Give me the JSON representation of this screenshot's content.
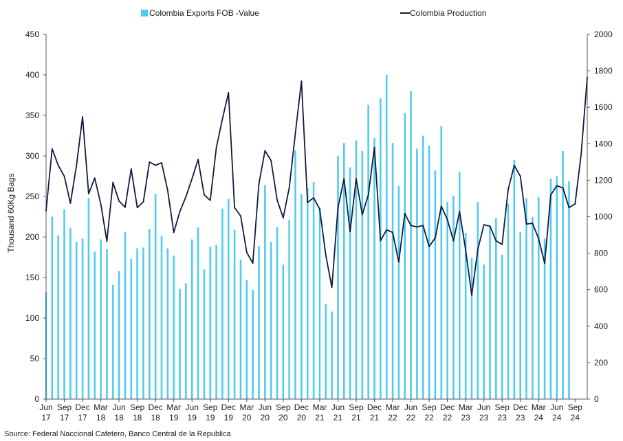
{
  "source_note": "Source: Federal Naccional Cafetero, Banco Central de la Republica",
  "chart_data": {
    "type": "bar",
    "ylabel": "Thousand 60Kg Bags",
    "ylim": [
      0,
      450
    ],
    "y2lim": [
      0,
      2000
    ],
    "y_ticks": [
      "0",
      "50",
      "100",
      "150",
      "200",
      "250",
      "300",
      "350",
      "400",
      "450"
    ],
    "y2_ticks": [
      "0",
      "200",
      "400",
      "600",
      "800",
      "1000",
      "1200",
      "1400",
      "1600",
      "1800",
      "2000"
    ],
    "grid": false,
    "legend_position": "top",
    "colors": {
      "bars": "#4FCCF0",
      "line": "#0E1A3E"
    },
    "x_start": "2017-06",
    "x_tick_labels": [
      [
        "Jun",
        "17"
      ],
      [
        "Sep",
        "17"
      ],
      [
        "Dec",
        "17"
      ],
      [
        "Mar",
        "18"
      ],
      [
        "Jun",
        "18"
      ],
      [
        "Sep",
        "18"
      ],
      [
        "Dec",
        "18"
      ],
      [
        "Mar",
        "19"
      ],
      [
        "Jun",
        "19"
      ],
      [
        "Sep",
        "19"
      ],
      [
        "Dec",
        "19"
      ],
      [
        "Mar",
        "20"
      ],
      [
        "Jun",
        "20"
      ],
      [
        "Sep",
        "20"
      ],
      [
        "Dec",
        "20"
      ],
      [
        "Mar",
        "21"
      ],
      [
        "Jun",
        "21"
      ],
      [
        "Sep",
        "21"
      ],
      [
        "Dec",
        "21"
      ],
      [
        "Mar",
        "22"
      ],
      [
        "Jun",
        "22"
      ],
      [
        "Sep",
        "22"
      ],
      [
        "Dec",
        "22"
      ],
      [
        "Mar",
        "23"
      ],
      [
        "Jun",
        "23"
      ],
      [
        "Sep",
        "23"
      ],
      [
        "Dec",
        "23"
      ],
      [
        "Mar",
        "24"
      ],
      [
        "Jun",
        "24"
      ],
      [
        "Sep",
        "24"
      ]
    ],
    "series": [
      {
        "name": "Colombia Exports FOB -Value",
        "kind": "bar",
        "axis": "left",
        "values": [
          132,
          225,
          202,
          234,
          211,
          194,
          198,
          248,
          182,
          197,
          185,
          141,
          158,
          206,
          173,
          186,
          187,
          210,
          253,
          201,
          186,
          177,
          136,
          143,
          197,
          212,
          160,
          188,
          190,
          235,
          247,
          209,
          172,
          147,
          135,
          189,
          264,
          194,
          212,
          166,
          221,
          307,
          253,
          261,
          268,
          236,
          117,
          108,
          300,
          316,
          286,
          319,
          306,
          363,
          322,
          371,
          400,
          316,
          263,
          353,
          380,
          309,
          325,
          313,
          282,
          337,
          243,
          251,
          280,
          205,
          174,
          243,
          166,
          214,
          223,
          178,
          241,
          295,
          206,
          248,
          225,
          249,
          198,
          272,
          275,
          306,
          269
        ]
      },
      {
        "name": "Colombia Production",
        "kind": "line",
        "axis": "right",
        "values": [
          1032,
          1372,
          1282,
          1222,
          1074,
          1280,
          1548,
          1126,
          1212,
          1070,
          866,
          1188,
          1086,
          1052,
          1262,
          1050,
          1082,
          1300,
          1282,
          1296,
          1144,
          914,
          1028,
          1110,
          1208,
          1314,
          1120,
          1090,
          1378,
          1536,
          1680,
          1050,
          1004,
          805,
          745,
          1180,
          1362,
          1308,
          1092,
          994,
          1160,
          1458,
          1744,
          1078,
          1104,
          1042,
          790,
          612,
          1048,
          1208,
          918,
          1208,
          1012,
          1120,
          1380,
          868,
          928,
          914,
          752,
          1018,
          952,
          944,
          952,
          836,
          884,
          1058,
          984,
          868,
          1028,
          818,
          570,
          820,
          956,
          948,
          868,
          848,
          1150,
          1282,
          1222,
          960,
          964,
          880,
          744,
          1120,
          1170,
          1158,
          1050,
          1070,
          1344,
          1764
        ]
      }
    ]
  }
}
